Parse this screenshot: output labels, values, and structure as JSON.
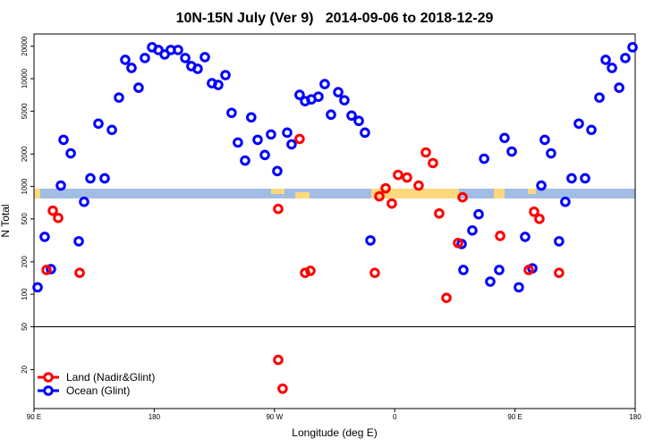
{
  "chart_data": {
    "type": "scatter",
    "title": "10N-15N July (Ver 9)   2014-09-06 to 2018-12-29",
    "x_label": "Longitude (deg E)",
    "y_label": "N Total",
    "log_y": true,
    "legend": "lower left",
    "xlim": [
      90,
      540
    ],
    "xticks": [
      {
        "value": 90,
        "label": "90 E"
      },
      180,
      {
        "value": 270,
        "label": "90 W"
      },
      {
        "value": 360,
        "label": "0"
      },
      {
        "value": 450,
        "label": "90 E"
      },
      {
        "value": 540,
        "label": "180"
      }
    ],
    "ylim": [
      8.7,
      26000
    ],
    "yticks": [
      20,
      50,
      100,
      200,
      500,
      1000,
      2000,
      5000,
      10000,
      20000
    ],
    "series": [
      {
        "name": "Land (Nadir&Glint)",
        "color": "#ff0000",
        "x": [
          99.4,
          104.1,
          108.1,
          124.2,
          272.8,
          272.8,
          276.1,
          288.8,
          292.9,
          296.9,
          345.1,
          348.5,
          353.2,
          357.8,
          362.5,
          369.2,
          377.9,
          383.3,
          388.6,
          393.3,
          398.7,
          407.4,
          410.8,
          438.9,
          460.3,
          464.3,
          468.3,
          483.0
        ],
        "values": [
          168,
          596,
          511,
          158,
          619,
          24.6,
          13.3,
          2760,
          158,
          165,
          158,
          810,
          962,
          695,
          1280,
          1210,
          1020,
          2070,
          1650,
          562,
          92.6,
          299,
          794,
          348,
          168,
          583,
          501,
          158
        ]
      },
      {
        "name": "Ocean (Glint)",
        "color": "#0000ff",
        "x": [
          92.7,
          98.0,
          102.7,
          110.1,
          112.1,
          117.5,
          123.5,
          127.5,
          132.2,
          138.2,
          142.9,
          148.3,
          153.6,
          158.3,
          163.0,
          168.3,
          173.0,
          178.4,
          183.1,
          187.8,
          192.4,
          197.8,
          203.2,
          207.8,
          212.5,
          217.9,
          223.2,
          227.9,
          233.3,
          237.9,
          242.6,
          248.0,
          252.6,
          257.4,
          262.8,
          267.4,
          272.1,
          279.5,
          282.8,
          288.8,
          292.9,
          297.6,
          302.9,
          307.6,
          312.3,
          317.7,
          322.3,
          327.7,
          333.1,
          337.7,
          341.8,
          410.1,
          411.4,
          418.1,
          422.8,
          426.9,
          431.5,
          438.2,
          442.2,
          447.6,
          452.9,
          457.6,
          463.0,
          469.7,
          472.3,
          477.0,
          483.0,
          487.7,
          492.4,
          497.8,
          502.5,
          507.2,
          513.2,
          517.9,
          522.6,
          528.0,
          532.6,
          538.0
        ],
        "values": [
          116,
          341,
          171,
          1020,
          2710,
          2030,
          310,
          721,
          1190,
          3830,
          1190,
          3350,
          6680,
          14960,
          12590,
          8250,
          15560,
          19580,
          18480,
          16790,
          18480,
          18480,
          15560,
          13080,
          12350,
          15850,
          9080,
          8750,
          10800,
          4820,
          2560,
          1740,
          4380,
          2710,
          1960,
          3040,
          1390,
          3160,
          2460,
          7080,
          6190,
          6430,
          6810,
          8910,
          4640,
          7500,
          6310,
          4550,
          4060,
          3160,
          316,
          293,
          168,
          391,
          552,
          1810,
          131,
          168,
          2820,
          2110,
          116,
          341,
          174,
          1020,
          2710,
          2030,
          310,
          721,
          1190,
          3830,
          1190,
          3350,
          6680,
          14960,
          12590,
          8250,
          15560,
          19580
        ]
      }
    ]
  }
}
